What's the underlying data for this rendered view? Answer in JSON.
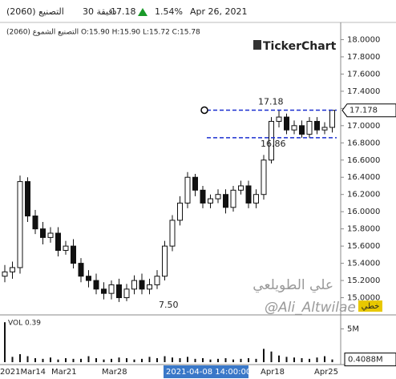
{
  "header": {
    "symbol": "التصنيع (2060)",
    "interval": "30 دقيقة",
    "price": "17.18",
    "change": "1.54%",
    "date": "Apr 26, 2021"
  },
  "chart_data": {
    "type": "candlestick",
    "legend_text": "التصنيع الشموع (2060) O:15.90 H:15.90 L:15.72 C:15.78",
    "logo": "TickerChart",
    "open": [
      15.25,
      15.3,
      15.35,
      16.35,
      15.95,
      15.8,
      15.7,
      15.75,
      15.55,
      15.6,
      15.4,
      15.25,
      15.2,
      15.1,
      15.05,
      15.15,
      15.0,
      15.1,
      15.2,
      15.1,
      15.15,
      15.25,
      15.6,
      15.9,
      16.1,
      16.4,
      16.25,
      16.1,
      16.15,
      16.2,
      16.05,
      16.25,
      16.3,
      16.1,
      16.2,
      16.6,
      17.05,
      17.1,
      16.95,
      17.0,
      16.9,
      17.05,
      16.95,
      16.98
    ],
    "high": [
      15.38,
      15.42,
      16.42,
      16.4,
      16.02,
      15.88,
      15.82,
      15.82,
      15.66,
      15.68,
      15.46,
      15.32,
      15.28,
      15.18,
      15.2,
      15.22,
      15.16,
      15.26,
      15.28,
      15.22,
      15.32,
      15.66,
      15.96,
      16.18,
      16.46,
      16.44,
      16.3,
      16.2,
      16.26,
      16.26,
      16.3,
      16.36,
      16.36,
      16.26,
      16.66,
      17.1,
      17.18,
      17.14,
      17.06,
      17.06,
      17.1,
      17.1,
      17.04,
      17.18
    ],
    "low": [
      15.18,
      15.22,
      15.28,
      15.88,
      15.74,
      15.62,
      15.64,
      15.48,
      15.5,
      15.34,
      15.18,
      15.12,
      15.04,
      14.98,
      14.98,
      14.95,
      14.96,
      15.04,
      15.04,
      15.04,
      15.1,
      15.2,
      15.54,
      15.84,
      16.04,
      16.18,
      16.04,
      16.04,
      16.1,
      15.98,
      16.0,
      16.2,
      16.04,
      16.04,
      16.14,
      16.56,
      16.98,
      16.9,
      16.9,
      16.86,
      16.86,
      16.9,
      16.9,
      16.92
    ],
    "close": [
      15.3,
      15.35,
      16.35,
      15.95,
      15.8,
      15.7,
      15.75,
      15.55,
      15.6,
      15.4,
      15.25,
      15.2,
      15.1,
      15.05,
      15.15,
      15.0,
      15.1,
      15.2,
      15.1,
      15.15,
      15.25,
      15.6,
      15.9,
      16.1,
      16.4,
      16.25,
      16.1,
      16.15,
      16.2,
      16.05,
      16.25,
      16.3,
      16.1,
      16.2,
      16.6,
      17.05,
      17.1,
      16.95,
      17.0,
      16.9,
      17.05,
      16.95,
      16.98,
      17.178
    ],
    "color": "#111111",
    "ylim": [
      14.8,
      18.2
    ],
    "yticks": [
      {
        "value": 18,
        "label": "18.0000"
      },
      {
        "value": 17.8,
        "label": "17.8000"
      },
      {
        "value": 17.6,
        "label": "17.6000"
      },
      {
        "value": 17.4,
        "label": "17.4000"
      },
      {
        "value": 17.2,
        "label": "17.2000"
      },
      {
        "value": 17,
        "label": "17.0000"
      },
      {
        "value": 16.8,
        "label": "16.8000"
      },
      {
        "value": 16.6,
        "label": "16.6000"
      },
      {
        "value": 16.4,
        "label": "16.4000"
      },
      {
        "value": 16.2,
        "label": "16.2000"
      },
      {
        "value": 16,
        "label": "16.0000"
      },
      {
        "value": 15.8,
        "label": "15.8000"
      },
      {
        "value": 15.6,
        "label": "15.6000"
      },
      {
        "value": 15.4,
        "label": "15.4000"
      },
      {
        "value": 15.2,
        "label": "15.2000"
      },
      {
        "value": 15,
        "label": "15.0000"
      }
    ],
    "last_price": 17.178,
    "levels": [
      17.18,
      16.86
    ],
    "level_color": "#1a2fd0",
    "low_label": "7.50",
    "line_tag": "خطي",
    "watermark": [
      "علي الطويلعي",
      "@Ali_Altwilae"
    ],
    "x_labels": [
      "2021Mar14",
      "Mar21",
      "Mar28",
      "Apr18",
      "Apr25"
    ],
    "cursor_label": "2021-04-08 14:00:00",
    "volume": {
      "title": "VOL  0.39",
      "unit_ylim": [
        0,
        6.5
      ],
      "yticks": [
        {
          "value": 5,
          "label": "5M"
        }
      ],
      "values": [
        6.0,
        0.8,
        1.2,
        0.9,
        0.6,
        0.5,
        0.7,
        0.4,
        0.6,
        0.5,
        0.5,
        0.9,
        0.6,
        0.4,
        0.5,
        0.7,
        0.6,
        0.4,
        0.5,
        0.8,
        0.6,
        0.9,
        0.7,
        0.6,
        0.8,
        0.5,
        0.6,
        0.4,
        0.5,
        0.6,
        0.4,
        0.5,
        0.6,
        0.5,
        2.0,
        1.6,
        1.0,
        0.8,
        0.7,
        0.6,
        0.5,
        0.7,
        0.9,
        0.4088
      ],
      "last_label": "0.4088M",
      "color": "#111111"
    }
  }
}
